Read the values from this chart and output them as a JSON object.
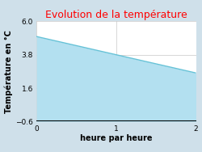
{
  "title": "Evolution de la température",
  "title_color": "#ff0000",
  "xlabel": "heure par heure",
  "ylabel": "Température en °C",
  "x_data": [
    0,
    2.0
  ],
  "y_data": [
    5.0,
    2.6
  ],
  "ylim": [
    -0.6,
    6.0
  ],
  "xlim": [
    0,
    2
  ],
  "yticks": [
    -0.6,
    1.6,
    3.8,
    6.0
  ],
  "xticks": [
    0,
    1,
    2
  ],
  "fill_color": "#b3e0f0",
  "fill_alpha": 1.0,
  "line_color": "#66c2d7",
  "line_width": 1.0,
  "fill_baseline": -0.6,
  "bg_color": "#cfe0ea",
  "plot_bg_color": "#ffffff",
  "grid_color": "#c8c8c8",
  "title_fontsize": 9,
  "label_fontsize": 7,
  "tick_fontsize": 6.5,
  "figwidth": 2.5,
  "figheight": 1.88,
  "dpi": 100
}
